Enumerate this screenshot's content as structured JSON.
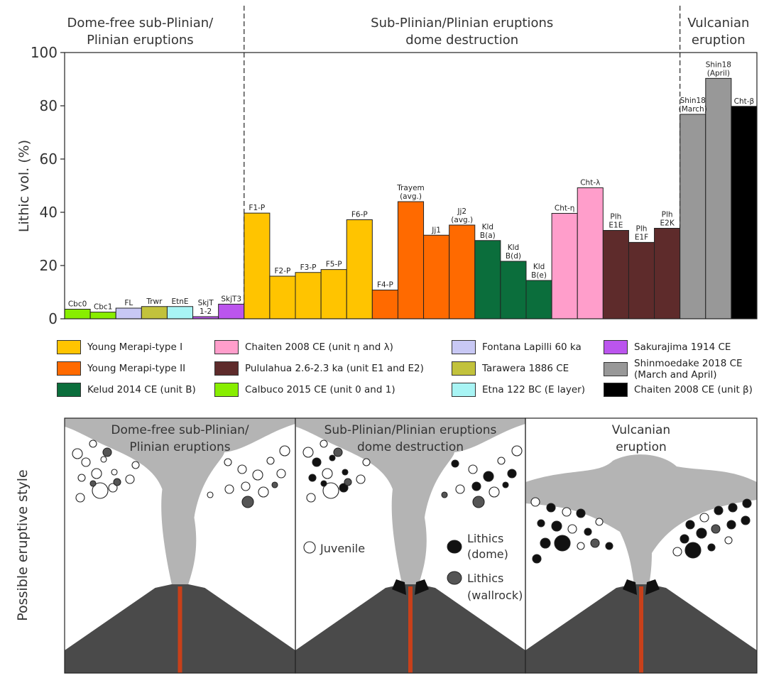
{
  "chart_data": {
    "type": "bar",
    "ylabel": "Lithic vol. (%)",
    "ylim": [
      0,
      100
    ],
    "yticks": [
      "0",
      "20",
      "40",
      "60",
      "80",
      "100"
    ],
    "grid": false,
    "section_headers": [
      {
        "lines": [
          "Dome-free sub-Plinian/",
          "Plinian eruptions"
        ]
      },
      {
        "lines": [
          "Sub-Plinian/Plinian eruptions",
          "dome destruction"
        ]
      },
      {
        "lines": [
          "Vulcanian",
          "eruption"
        ]
      }
    ],
    "bars": [
      {
        "label": [
          "Cbc0"
        ],
        "value": 3.6,
        "color": "#88ee00",
        "group": "Calbuco 2015 CE"
      },
      {
        "label": [
          "Cbc1"
        ],
        "value": 2.5,
        "color": "#88ee00",
        "group": "Calbuco 2015 CE"
      },
      {
        "label": [
          "FL"
        ],
        "value": 4.0,
        "color": "#c8c8f4",
        "group": "Fontana Lapilli 60 ka"
      },
      {
        "label": [
          "Trwr"
        ],
        "value": 4.6,
        "color": "#c2c23c",
        "group": "Tarawera 1886 CE"
      },
      {
        "label": [
          "EtnE"
        ],
        "value": 4.6,
        "color": "#a8f4f4",
        "group": "Etna 122 BC"
      },
      {
        "label": [
          "SkjT",
          "1-2"
        ],
        "value": 0.8,
        "color": "#bb55ee",
        "group": "Sakurajima 1914 CE"
      },
      {
        "label": [
          "SkjT3"
        ],
        "value": 5.5,
        "color": "#bb55ee",
        "group": "Sakurajima 1914 CE"
      },
      {
        "label": [
          "F1-P"
        ],
        "value": 39.7,
        "color": "#ffc400",
        "group": "Young Merapi-type I"
      },
      {
        "label": [
          "F2-P"
        ],
        "value": 16.0,
        "color": "#ffc400",
        "group": "Young Merapi-type I"
      },
      {
        "label": [
          "F3-P"
        ],
        "value": 17.4,
        "color": "#ffc400",
        "group": "Young Merapi-type I"
      },
      {
        "label": [
          "F5-P"
        ],
        "value": 18.5,
        "color": "#ffc400",
        "group": "Young Merapi-type I"
      },
      {
        "label": [
          "F6-P"
        ],
        "value": 37.2,
        "color": "#ffc400",
        "group": "Young Merapi-type I"
      },
      {
        "label": [
          "F4-P"
        ],
        "value": 10.8,
        "color": "#ff6a00",
        "group": "Young Merapi-type II"
      },
      {
        "label": [
          "Trayem",
          "(avg.)"
        ],
        "value": 44.0,
        "color": "#ff6a00",
        "group": "Young Merapi-type II"
      },
      {
        "label": [
          "Jj1"
        ],
        "value": 31.4,
        "color": "#ff6a00",
        "group": "Young Merapi-type II"
      },
      {
        "label": [
          "Jj2",
          "(avg.)"
        ],
        "value": 35.2,
        "color": "#ff6a00",
        "group": "Young Merapi-type II"
      },
      {
        "label": [
          "Kld",
          "B(a)"
        ],
        "value": 29.4,
        "color": "#0b6e3c",
        "group": "Kelud 2014 CE"
      },
      {
        "label": [
          "Kld",
          "B(d)"
        ],
        "value": 21.6,
        "color": "#0b6e3c",
        "group": "Kelud 2014 CE"
      },
      {
        "label": [
          "Kld",
          "B(e)"
        ],
        "value": 14.4,
        "color": "#0b6e3c",
        "group": "Kelud 2014 CE"
      },
      {
        "label": [
          "Cht-η"
        ],
        "value": 39.6,
        "color": "#ff9ecb",
        "group": "Chaiten 2008 CE"
      },
      {
        "label": [
          "Cht-λ"
        ],
        "value": 49.2,
        "color": "#ff9ecb",
        "group": "Chaiten 2008 CE"
      },
      {
        "label": [
          "Plh",
          "E1E"
        ],
        "value": 33.2,
        "color": "#5e2b2b",
        "group": "Pululahua 2.6-2.3 ka"
      },
      {
        "label": [
          "Plh",
          "E1F"
        ],
        "value": 28.7,
        "color": "#5e2b2b",
        "group": "Pululahua 2.6-2.3 ka"
      },
      {
        "label": [
          "Plh",
          "E2K"
        ],
        "value": 34.0,
        "color": "#5e2b2b",
        "group": "Pululahua 2.6-2.3 ka"
      },
      {
        "label": [
          "Shin18",
          "(March)"
        ],
        "value": 76.8,
        "color": "#989898",
        "group": "Shinmoedake 2018 CE"
      },
      {
        "label": [
          "Shin18",
          "(April)"
        ],
        "value": 90.3,
        "color": "#989898",
        "group": "Shinmoedake 2018 CE"
      },
      {
        "label": [
          "Cht-β"
        ],
        "value": 79.8,
        "color": "#000000",
        "group": "Chaiten 2008 CE (unit β)"
      }
    ]
  },
  "legend": {
    "items": [
      {
        "color": "#ffc400",
        "text": [
          "Young Merapi-type I"
        ]
      },
      {
        "color": "#ff6a00",
        "text": [
          "Young Merapi-type II"
        ]
      },
      {
        "color": "#0b6e3c",
        "text": [
          "Kelud 2014 CE (unit B)"
        ]
      },
      {
        "color": "#ff9ecb",
        "text": [
          "Chaiten 2008 CE (unit η and λ)"
        ]
      },
      {
        "color": "#5e2b2b",
        "text": [
          "Pululahua 2.6-2.3 ka (unit E1 and E2)"
        ]
      },
      {
        "color": "#88ee00",
        "text": [
          "Calbuco 2015 CE (unit 0 and 1)"
        ]
      },
      {
        "color": "#c8c8f4",
        "text": [
          "Fontana Lapilli 60 ka"
        ]
      },
      {
        "color": "#c2c23c",
        "text": [
          "Tarawera 1886 CE"
        ]
      },
      {
        "color": "#a8f4f4",
        "text": [
          "Etna 122 BC (E layer)"
        ]
      },
      {
        "color": "#bb55ee",
        "text": [
          "Sakurajima 1914 CE"
        ]
      },
      {
        "color": "#989898",
        "text": [
          "Shinmoedake 2018 CE",
          "(March and April)"
        ]
      },
      {
        "color": "#000000",
        "text": [
          "Chaiten 2008 CE (unit β)"
        ]
      }
    ]
  },
  "diagram": {
    "ylabel": "Possible eruptive style",
    "panels": [
      {
        "title": [
          "Dome-free sub-Plinian/",
          "Plinian eruptions"
        ]
      },
      {
        "title": [
          "Sub-Plinian/Plinian eruptions",
          "dome destruction"
        ]
      },
      {
        "title": [
          "Vulcanian",
          "eruption"
        ]
      }
    ],
    "key": {
      "juvenile": "Juvenile",
      "lithics_dome": [
        "Lithics",
        "(dome)"
      ],
      "lithics_wallrock": [
        "Lithics",
        "(wallrock)"
      ]
    },
    "colors": {
      "plume": "#b4b4b4",
      "volcano": "#4a4a4a",
      "conduit": "#c8401a",
      "lithic_dome": "#111111",
      "lithic_wallrock": "#555555"
    }
  }
}
